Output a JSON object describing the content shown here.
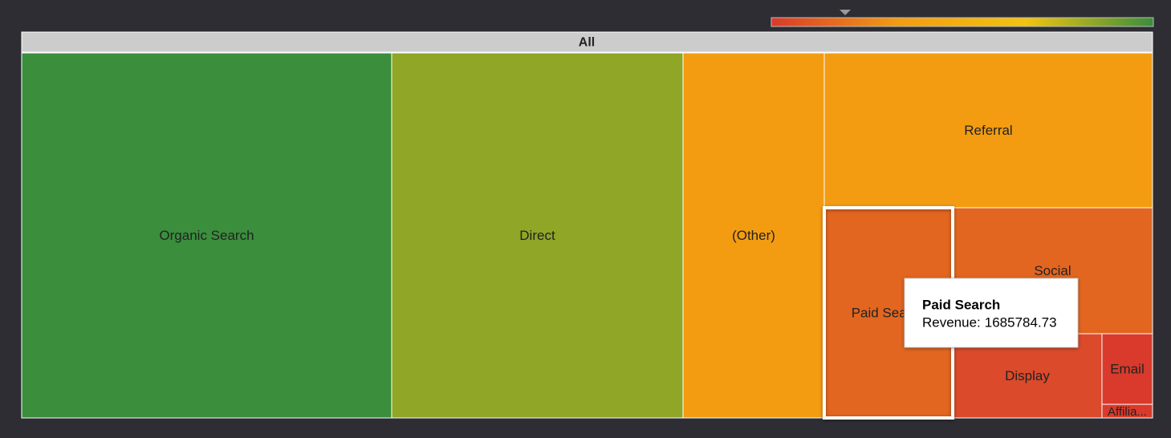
{
  "chart_data": {
    "type": "treemap",
    "root": "All",
    "categories": [
      "Organic Search",
      "Direct",
      "(Other)",
      "Referral",
      "Paid Search",
      "Social",
      "Display",
      "Email",
      "Affilia..."
    ],
    "values": [
      8434000,
      6641000,
      3220000,
      3174000,
      1685784.73,
      1572000,
      785000,
      223000,
      43000
    ],
    "colors": [
      "#3a8e3c",
      "#8fa626",
      "#f39c12",
      "#f39c12",
      "#e26620",
      "#e26620",
      "#db4a2b",
      "#d93a2b",
      "#d93a2b"
    ],
    "color_scale": [
      "#d93a2b",
      "#f39c12",
      "#f1c40f",
      "#3a8e3c"
    ],
    "tooltip": {
      "title": "Paid Search",
      "label": "Revenue:"
    }
  }
}
